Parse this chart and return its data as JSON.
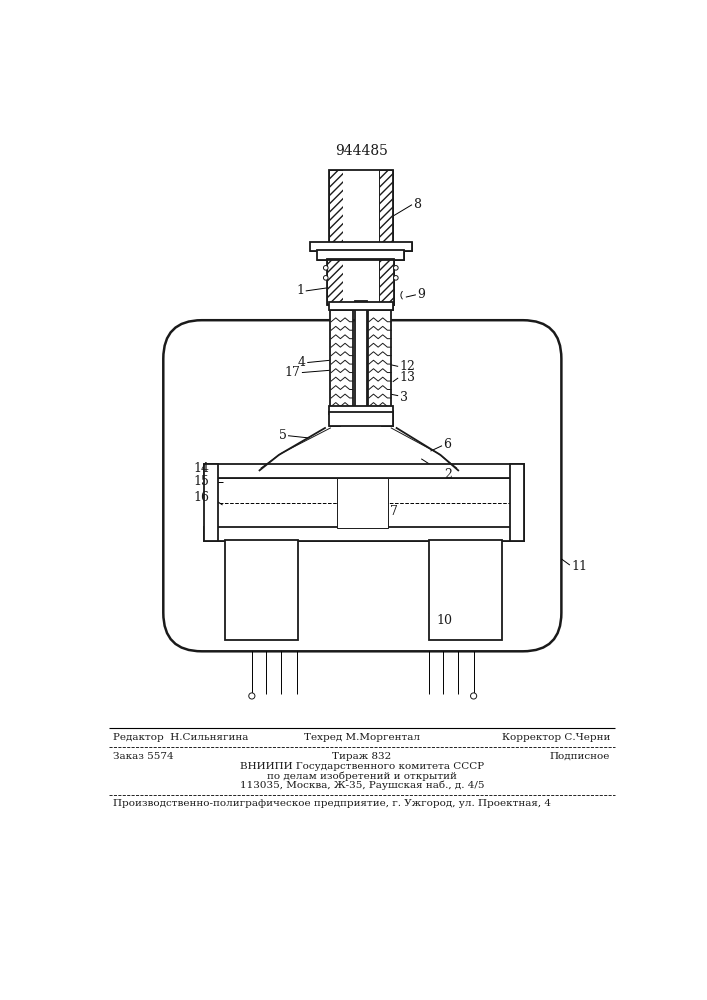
{
  "patent_number": "944485",
  "background_color": "#ffffff",
  "line_color": "#1a1a1a",
  "footer_lines": [
    {
      "left": "Редактор  Н.Сильнягина",
      "center": "Техред М.Моргентал",
      "right": "Корректор С.Черни"
    },
    {
      "left": "Заказ 5574",
      "center": "Тираж 832",
      "right": "Подписное"
    },
    {
      "center": "ВНИИПИ Государственного комитета СССР"
    },
    {
      "center": "по делам изобретений и открытий"
    },
    {
      "center": "113035, Москва, Ж-35, Раушская наб., д. 4/5"
    },
    {
      "left": "Производственно-полиграфическое предприятие, г. Ужгород, ул. Проектная, 4"
    }
  ]
}
